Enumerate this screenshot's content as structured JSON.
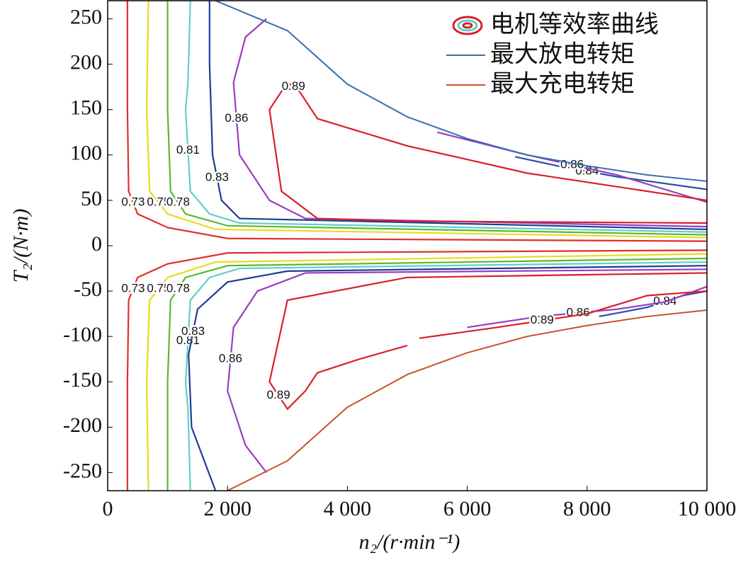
{
  "chart_data": {
    "type": "contour",
    "xlabel": "n₂/(r·min⁻¹)",
    "ylabel": "T₂/(N·m)",
    "xlim": [
      0,
      10000
    ],
    "ylim": [
      -270,
      270
    ],
    "xticks": [
      0,
      {
        "value": 2000,
        "label": "2 000"
      },
      {
        "value": 4000,
        "label": "4 000"
      },
      {
        "value": 6000,
        "label": "6 000"
      },
      {
        "value": 8000,
        "label": "8 000"
      },
      {
        "value": 10000,
        "label": "10 000"
      }
    ],
    "yticks": [
      -250,
      -200,
      -150,
      -100,
      -50,
      0,
      50,
      100,
      150,
      200,
      250
    ],
    "legend_position": "upper right",
    "contour_legend": "电机等效率曲线",
    "contours": [
      {
        "level": 0.73,
        "color": "#e0302b",
        "pieces": [
          {
            "x": [
              330,
              330,
              350,
              500,
              1000,
              2000,
              10000
            ],
            "y": [
              270,
              150,
              60,
              35,
              20,
              8,
              5
            ]
          },
          {
            "x": [
              330,
              330,
              350,
              500,
              1000,
              2000,
              10000
            ],
            "y": [
              -270,
              -150,
              -60,
              -35,
              -20,
              -8,
              -5
            ]
          }
        ]
      },
      {
        "level": 0.75,
        "color": "#e6dc1e",
        "pieces": [
          {
            "x": [
              680,
              650,
              700,
              1000,
              1800,
              10000
            ],
            "y": [
              270,
              150,
              60,
              35,
              18,
              9
            ]
          },
          {
            "x": [
              680,
              650,
              700,
              1000,
              1800,
              10000
            ],
            "y": [
              -270,
              -150,
              -60,
              -35,
              -18,
              -9
            ]
          }
        ]
      },
      {
        "level": 0.78,
        "color": "#5cb82e",
        "pieces": [
          {
            "x": [
              1000,
              1000,
              1050,
              1300,
              2000,
              10000
            ],
            "y": [
              270,
              150,
              60,
              35,
              22,
              12
            ]
          },
          {
            "x": [
              1000,
              1000,
              1050,
              1300,
              2000,
              10000
            ],
            "y": [
              -270,
              -150,
              -60,
              -35,
              -22,
              -14
            ]
          }
        ]
      },
      {
        "level": 0.81,
        "color": "#5fcfc6",
        "pieces": [
          {
            "x": [
              1380,
              1340,
              1300,
              1380,
              1700,
              2200,
              10000
            ],
            "y": [
              270,
              180,
              150,
              60,
              35,
              25,
              15
            ]
          },
          {
            "x": [
              1380,
              1340,
              1300,
              1380,
              1700,
              2200,
              10000
            ],
            "y": [
              -270,
              -180,
              -150,
              -60,
              -35,
              -25,
              -18
            ]
          }
        ]
      },
      {
        "level": 0.83,
        "color": "#1e3c96",
        "pieces": [
          {
            "x": [
              1700,
              1700,
              1750,
              1900,
              2200,
              10000
            ],
            "y": [
              270,
              200,
              100,
              50,
              30,
              18
            ]
          },
          {
            "x": [
              1800,
              1400,
              1350,
              1500,
              2000,
              3000,
              10000
            ],
            "y": [
              -270,
              -200,
              -120,
              -70,
              -40,
              -28,
              -22
            ]
          }
        ]
      },
      {
        "level": 0.84,
        "color": "#2850a8",
        "pieces": [
          {
            "x": [
              6800,
              7500,
              8500,
              10000
            ],
            "y": [
              98,
              88,
              76,
              62
            ]
          },
          {
            "x": [
              8200,
              9000,
              9600,
              10000
            ],
            "y": [
              -78,
              -68,
              -55,
              -50
            ]
          }
        ]
      },
      {
        "level": 0.86,
        "color": "#9a3cc0",
        "pieces": [
          {
            "x": [
              2650,
              2300,
              2100,
              2200,
              2700,
              3300,
              10000
            ],
            "y": [
              250,
              230,
              180,
              100,
              50,
              30,
              21
            ]
          },
          {
            "x": [
              5500,
              7000,
              8500,
              10000
            ],
            "y": [
              125,
              100,
              78,
              48
            ]
          },
          {
            "x": [
              2650,
              2300,
              2000,
              2100,
              2500,
              3300,
              10000
            ],
            "y": [
              -250,
              -220,
              -160,
              -90,
              -50,
              -30,
              -26
            ]
          },
          {
            "x": [
              6000,
              7200,
              8500,
              9300,
              10000
            ],
            "y": [
              -90,
              -78,
              -70,
              -62,
              -45
            ]
          }
        ]
      },
      {
        "level": 0.89,
        "color": "#d8202a",
        "pieces": [
          {
            "x": [
              10000,
              5000,
              3500,
              2900,
              2700,
              3000,
              3200,
              3500,
              5000,
              7000,
              8500,
              10000
            ],
            "y": [
              25,
              27,
              30,
              60,
              150,
              180,
              170,
              140,
              110,
              80,
              65,
              50
            ]
          },
          {
            "x": [
              10000,
              8000,
              5000,
              3000,
              2700,
              3000,
              3300,
              3500,
              4200,
              5000
            ],
            "y": [
              -30,
              -32,
              -35,
              -60,
              -150,
              -180,
              -160,
              -140,
              -125,
              -110
            ]
          },
          {
            "x": [
              5200,
              6500,
              8000,
              9000,
              10000
            ],
            "y": [
              -102,
              -90,
              -75,
              -55,
              -50
            ]
          }
        ]
      }
    ],
    "series": [
      {
        "name": "最大放电转矩",
        "color": "#3a6fb0",
        "x": [
          1800,
          3000,
          4000,
          5000,
          6000,
          7000,
          8000,
          9000,
          10000
        ],
        "values": [
          270,
          237,
          178,
          142,
          118,
          100,
          88,
          78,
          71
        ]
      },
      {
        "name": "最大充电转矩",
        "color": "#c9532c",
        "x": [
          2000,
          3000,
          4000,
          5000,
          6000,
          7000,
          8000,
          9000,
          10000
        ],
        "values": [
          -270,
          -237,
          -178,
          -142,
          -118,
          -100,
          -88,
          -78,
          -71
        ]
      }
    ]
  }
}
